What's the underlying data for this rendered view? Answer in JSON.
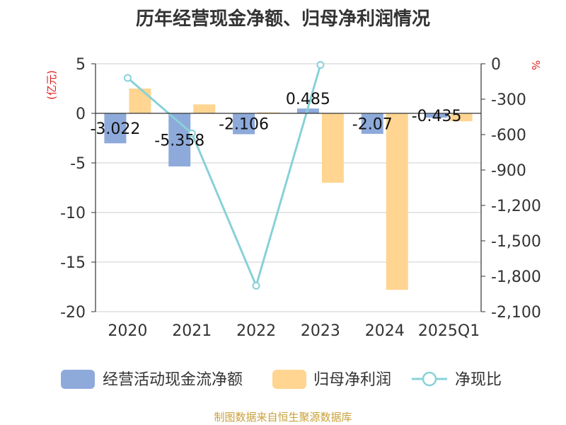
{
  "chart_data": {
    "type": "bar",
    "title": "历年经营现金净额、归母净利润情况",
    "categories": [
      "2020",
      "2021",
      "2022",
      "2023",
      "2024",
      "2025Q1"
    ],
    "y_left": {
      "unit": "(亿元)",
      "ylim": [
        -20,
        5
      ],
      "ticks": [
        5,
        0,
        -5,
        -10,
        -15,
        -20
      ]
    },
    "y_right": {
      "unit": "%",
      "ylim": [
        -2100,
        0
      ],
      "ticks": [
        "0",
        "-300",
        "-600",
        "-900",
        "-1,200",
        "-1,500",
        "-1,800",
        "-2,100"
      ],
      "tick_values": [
        0,
        -300,
        -600,
        -900,
        -1200,
        -1500,
        -1800,
        -2100
      ]
    },
    "series": [
      {
        "name": "经营活动现金流净额",
        "type": "bar",
        "axis": "left",
        "color": "#8eaadb",
        "values": [
          -3.022,
          -5.358,
          -2.106,
          0.485,
          -2.07,
          -0.435
        ],
        "labels": [
          "-3.022",
          "-5.358",
          "-2.106",
          "0.485",
          "-2.07",
          "-0.435"
        ]
      },
      {
        "name": "归母净利润",
        "type": "bar",
        "axis": "left",
        "color": "#ffd591",
        "values": [
          2.5,
          0.9,
          0.1,
          -7.0,
          -17.8,
          -0.8
        ]
      },
      {
        "name": "净现比",
        "type": "line",
        "axis": "right",
        "color": "#88d1d8",
        "values": [
          -120,
          -590,
          -1880,
          -10,
          null,
          null
        ]
      }
    ],
    "grid": true,
    "legend_position": "bottom"
  },
  "source": "制图数据来自恒生聚源数据库"
}
